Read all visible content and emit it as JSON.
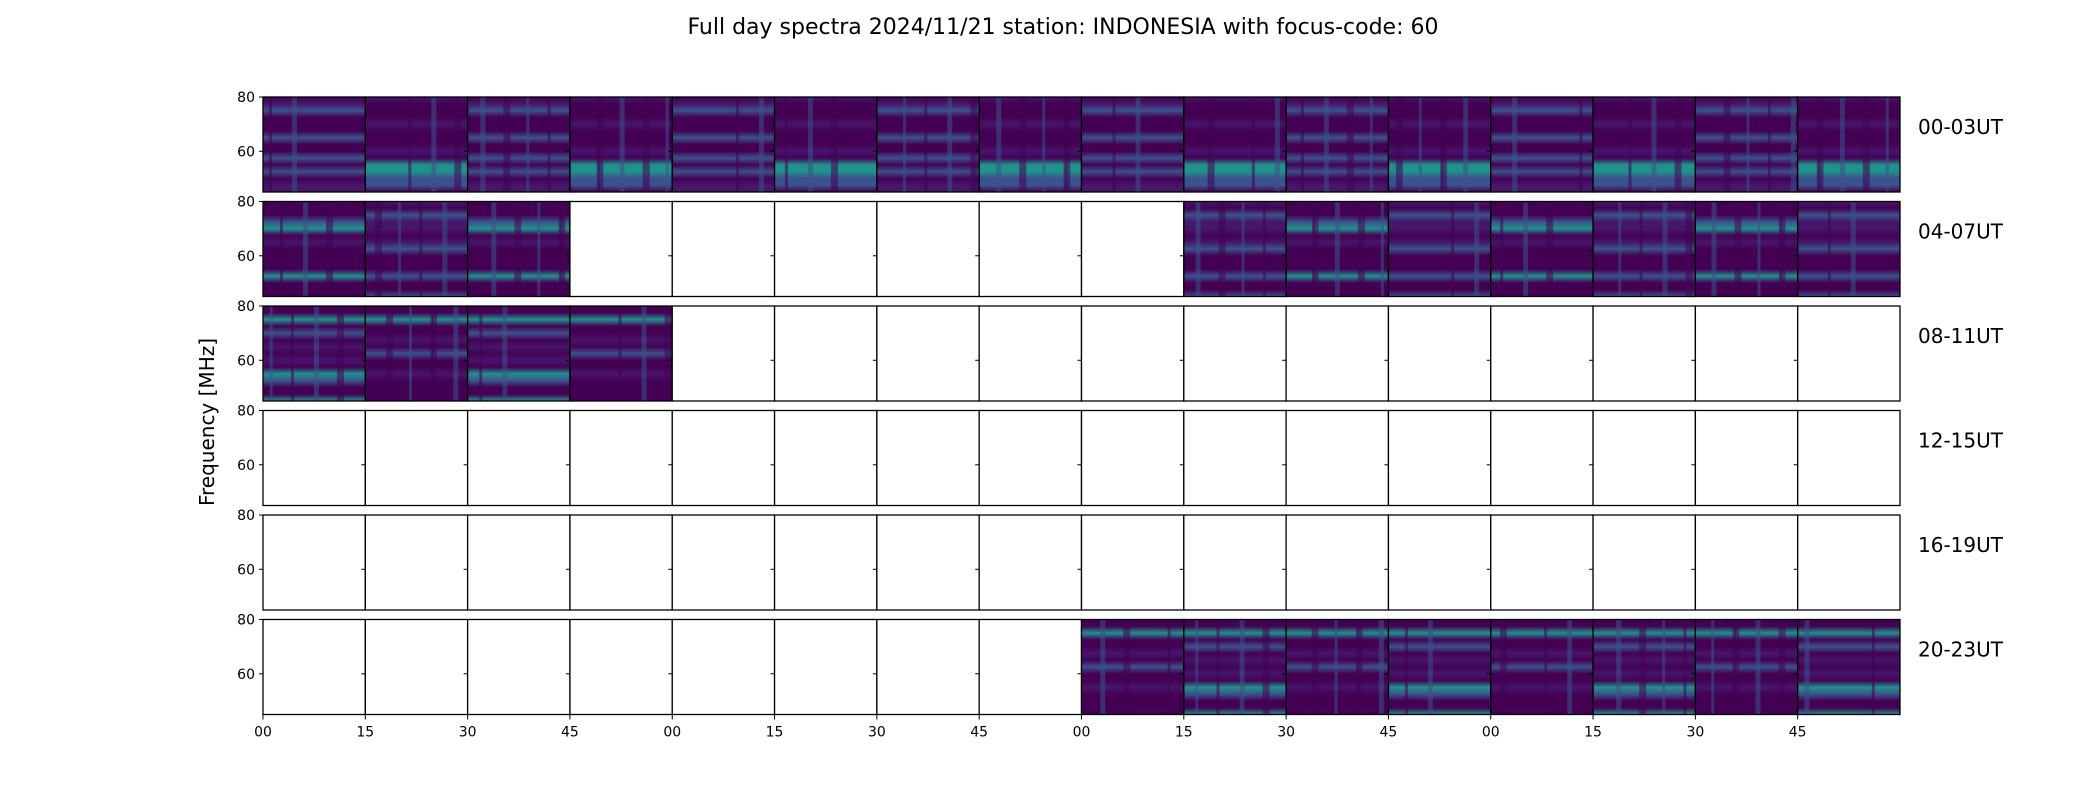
{
  "chart_data": {
    "type": "heatmap",
    "title": "Full day spectra 2024/11/21 station: INDONESIA with focus-code: 60",
    "ylabel": "Frequency [MHz]",
    "xlabel": "",
    "colormap": "viridis",
    "ylim": [
      45,
      80
    ],
    "y_ticks": [
      "60",
      "80"
    ],
    "x_ticks": [
      "00",
      "15",
      "30",
      "45",
      "00",
      "15",
      "30",
      "45",
      "00",
      "15",
      "30",
      "45",
      "00",
      "15",
      "30",
      "45"
    ],
    "rows": [
      {
        "label": "00-03UT",
        "panels": [
          1,
          1,
          1,
          1,
          1,
          1,
          1,
          1,
          1,
          1,
          1,
          1,
          1,
          1,
          1,
          1
        ]
      },
      {
        "label": "04-07UT",
        "panels": [
          1,
          1,
          1,
          0,
          0,
          0,
          0,
          0,
          0,
          1,
          1,
          1,
          1,
          1,
          1,
          1
        ]
      },
      {
        "label": "08-11UT",
        "panels": [
          1,
          1,
          1,
          1,
          0,
          0,
          0,
          0,
          0,
          0,
          0,
          0,
          0,
          0,
          0,
          0
        ]
      },
      {
        "label": "12-15UT",
        "panels": [
          0,
          0,
          0,
          0,
          0,
          0,
          0,
          0,
          0,
          0,
          0,
          0,
          0,
          0,
          0,
          0
        ]
      },
      {
        "label": "16-19UT",
        "panels": [
          0,
          0,
          0,
          0,
          0,
          0,
          0,
          0,
          0,
          0,
          0,
          0,
          0,
          0,
          0,
          0
        ]
      },
      {
        "label": "20-23UT",
        "panels": [
          0,
          0,
          0,
          0,
          0,
          0,
          0,
          0,
          1,
          1,
          1,
          1,
          1,
          1,
          1,
          1
        ]
      }
    ]
  },
  "colors": {
    "background": "#440154",
    "low": "#46166b",
    "mid": "#3b528b",
    "high": "#21918c",
    "peak": "#35b779"
  }
}
